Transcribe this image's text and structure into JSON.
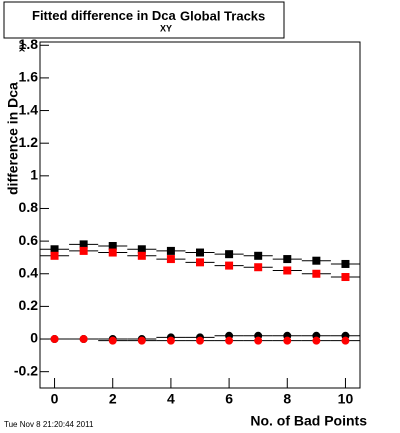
{
  "chart_data": {
    "type": "scatter",
    "title": "Fitted difference in Dca",
    "title_sub": "XY",
    "title_end": "Global Tracks",
    "x_label": "No. of Bad Points",
    "y_label": "difference in Dca",
    "y_label_sub": "xy",
    "timestamp": "Tue Nov  8 21:20:44 2011",
    "x": [
      0,
      1,
      2,
      3,
      4,
      5,
      6,
      7,
      8,
      9,
      10
    ],
    "xlim": [
      -0.5,
      10.5
    ],
    "xticks": [
      0,
      2,
      4,
      6,
      8,
      10
    ],
    "ylim": [
      -0.3,
      1.82
    ],
    "yticks": [
      -0.2,
      0,
      0.2,
      0.4,
      0.6,
      0.8,
      1,
      1.2,
      1.4,
      1.6,
      1.8
    ],
    "series": [
      {
        "color": "#000000",
        "marker": "square",
        "values": [
          0.55,
          0.58,
          0.57,
          0.55,
          0.54,
          0.53,
          0.52,
          0.51,
          0.49,
          0.48,
          0.46
        ]
      },
      {
        "color": "#ff0000",
        "marker": "square",
        "values": [
          0.51,
          0.54,
          0.53,
          0.51,
          0.49,
          0.47,
          0.45,
          0.44,
          0.42,
          0.4,
          0.38
        ]
      },
      {
        "color": "#000000",
        "marker": "circle",
        "values": [
          0,
          0,
          0,
          0,
          0.01,
          0.01,
          0.02,
          0.02,
          0.02,
          0.02,
          0.02
        ]
      },
      {
        "color": "#ff0000",
        "marker": "circle",
        "values": [
          0,
          0,
          -0.01,
          -0.01,
          -0.01,
          -0.01,
          -0.01,
          -0.01,
          -0.01,
          -0.01,
          -0.01
        ]
      }
    ]
  }
}
